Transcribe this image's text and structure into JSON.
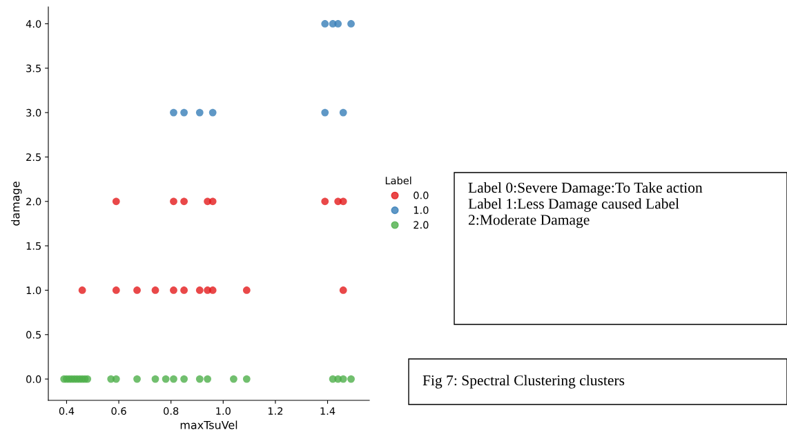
{
  "chart_data": {
    "type": "scatter",
    "xlabel": "maxTsuVel",
    "ylabel": "damage",
    "legend_title": "Label",
    "legend": "right",
    "marker": "circle",
    "grid": false,
    "xlim": [
      0.33,
      1.56
    ],
    "ylim": [
      -0.24,
      4.19
    ],
    "xticks": [
      {
        "value": 0.4,
        "label": "0.4"
      },
      {
        "value": 0.6,
        "label": "0.6"
      },
      {
        "value": 0.8,
        "label": "0.8"
      },
      {
        "value": 1.0,
        "label": "1.0"
      },
      {
        "value": 1.2,
        "label": "1.2"
      },
      {
        "value": 1.4,
        "label": "1.4"
      }
    ],
    "yticks": [
      {
        "value": 0,
        "label": "0.0"
      },
      {
        "value": 0.5,
        "label": "0.5"
      },
      {
        "value": 1,
        "label": "1.0"
      },
      {
        "value": 1.5,
        "label": "1.5"
      },
      {
        "value": 2,
        "label": "2.0"
      },
      {
        "value": 2.5,
        "label": "2.5"
      },
      {
        "value": 3,
        "label": "3.0"
      },
      {
        "value": 3.5,
        "label": "3.5"
      },
      {
        "value": 4,
        "label": "4.0"
      }
    ],
    "series": [
      {
        "name": "0.0",
        "color": "#e41a1c",
        "x": [
          0.46,
          0.59,
          0.67,
          0.74,
          0.81,
          0.85,
          0.91,
          0.94,
          0.96,
          1.09,
          1.46,
          0.59,
          0.81,
          0.85,
          0.94,
          0.96,
          1.39,
          1.44,
          1.46
        ],
        "values": [
          1,
          1,
          1,
          1,
          1,
          1,
          1,
          1,
          1,
          1,
          1,
          2,
          2,
          2,
          2,
          2,
          2,
          2,
          2
        ]
      },
      {
        "name": "1.0",
        "color": "#377eb8",
        "x": [
          0.81,
          0.85,
          0.91,
          0.96,
          1.39,
          1.46,
          1.39,
          1.42,
          1.44,
          1.49
        ],
        "values": [
          3,
          3,
          3,
          3,
          3,
          3,
          4,
          4,
          4,
          4
        ]
      },
      {
        "name": "2.0",
        "color": "#4daf4a",
        "x": [
          0.39,
          0.4,
          0.41,
          0.42,
          0.43,
          0.44,
          0.45,
          0.46,
          0.47,
          0.48,
          0.57,
          0.59,
          0.67,
          0.74,
          0.78,
          0.81,
          0.85,
          0.91,
          0.94,
          1.04,
          1.09,
          1.42,
          1.44,
          1.46,
          1.49
        ],
        "values": [
          0,
          0,
          0,
          0,
          0,
          0,
          0,
          0,
          0,
          0,
          0,
          0,
          0,
          0,
          0,
          0,
          0,
          0,
          0,
          0,
          0,
          0,
          0,
          0,
          0
        ]
      }
    ],
    "annotations": [
      "Label 0:Severe Damage:To Take action\nLabel 1:Less Damage caused Label\n2:Moderate Damage",
      "Fig 7: Spectral Clustering clusters"
    ]
  }
}
